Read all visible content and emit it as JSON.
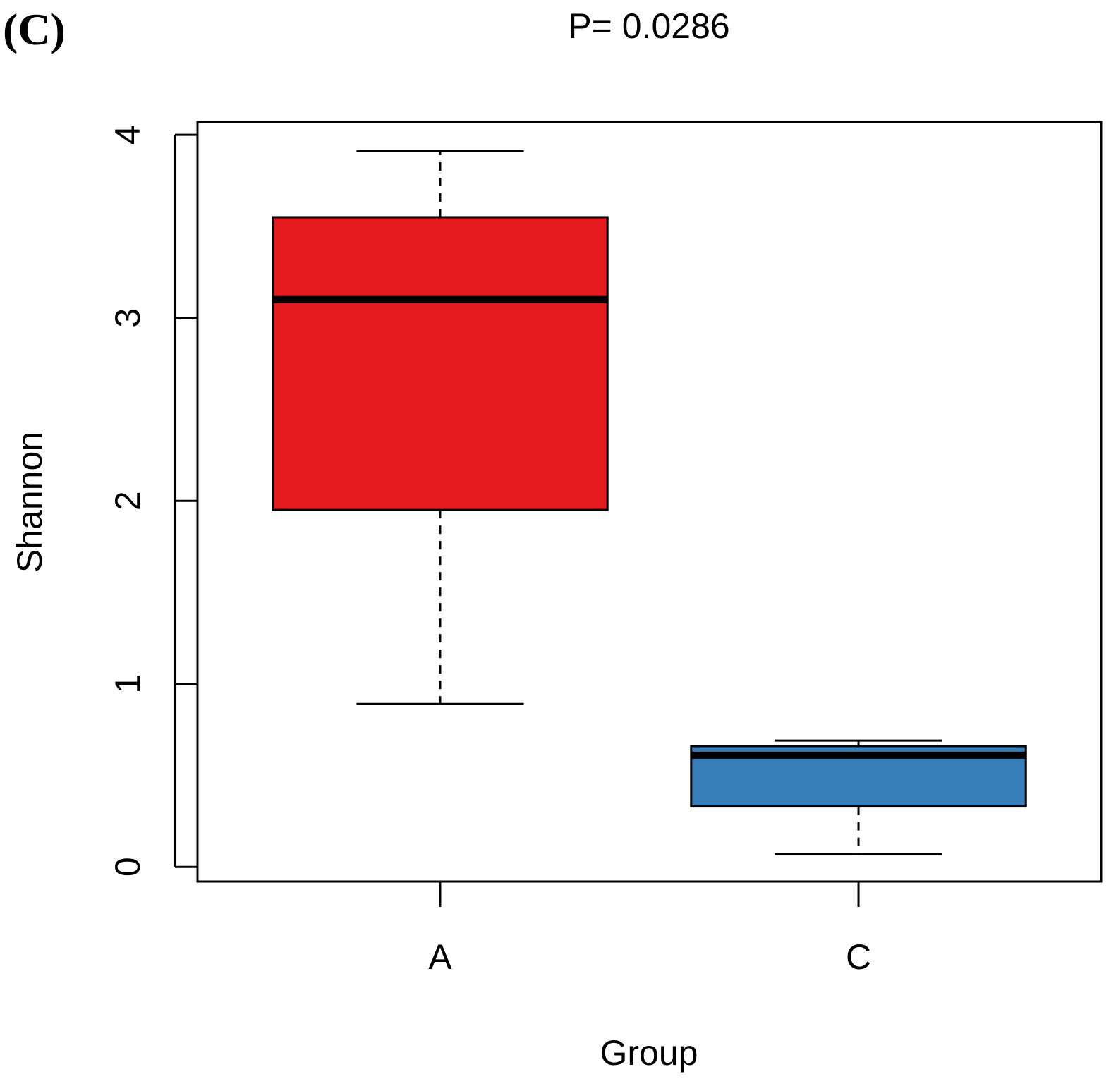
{
  "chart_data": {
    "type": "boxplot",
    "panel_label": "(C)",
    "title": "P= 0.0286",
    "xlabel": "Group",
    "ylabel": "Shannon",
    "ylim": [
      -0.08,
      4.07
    ],
    "yticks": [
      0,
      1,
      2,
      3,
      4
    ],
    "ytick_labels": [
      "0",
      "1",
      "2",
      "3",
      "4"
    ],
    "categories": [
      "A",
      "C"
    ],
    "boxes": [
      {
        "group": "A",
        "whisker_low": 0.89,
        "q1": 1.95,
        "median": 3.1,
        "q3": 3.55,
        "whisker_high": 3.91,
        "color": "#e41a1c"
      },
      {
        "group": "C",
        "whisker_low": 0.07,
        "q1": 0.33,
        "median": 0.61,
        "q3": 0.66,
        "whisker_high": 0.69,
        "color": "#377eb8"
      }
    ]
  }
}
